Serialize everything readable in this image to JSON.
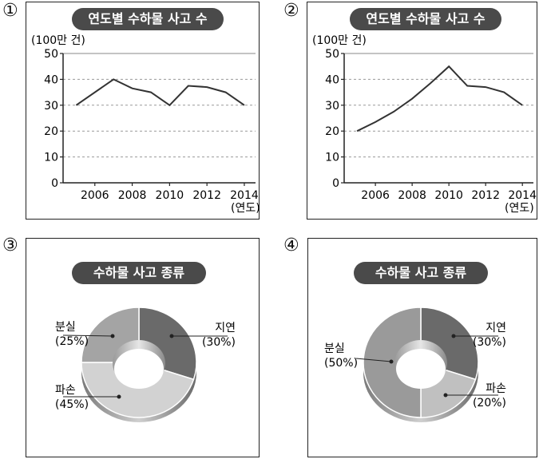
{
  "options": [
    "①",
    "②",
    "③",
    "④"
  ],
  "chart_data": [
    {
      "type": "line",
      "title": "연도별 수하물 사고 수",
      "ylabel": "(100만 건)",
      "xlabel": "(연도)",
      "ylim": [
        0,
        50
      ],
      "yticks": [
        "0",
        "10",
        "20",
        "30",
        "40",
        "50"
      ],
      "xticks": [
        "2006",
        "2008",
        "2010",
        "2012",
        "2014"
      ],
      "xlim": [
        2004.3,
        2014.6
      ],
      "x": [
        2005,
        2007,
        2008,
        2009,
        2010,
        2011,
        2012,
        2013,
        2014
      ],
      "values": [
        30,
        40,
        36.5,
        35,
        30,
        37.5,
        37,
        35,
        30
      ]
    },
    {
      "type": "line",
      "title": "연도별 수하물 사고 수",
      "ylabel": "(100만 건)",
      "xlabel": "(연도)",
      "ylim": [
        0,
        50
      ],
      "yticks": [
        "0",
        "10",
        "20",
        "30",
        "40",
        "50"
      ],
      "xticks": [
        "2006",
        "2008",
        "2010",
        "2012",
        "2014"
      ],
      "xlim": [
        2004.3,
        2014.6
      ],
      "x": [
        2005,
        2006,
        2007,
        2008,
        2009,
        2010,
        2011,
        2012,
        2013,
        2014
      ],
      "values": [
        20,
        23.5,
        27.5,
        32.5,
        38.5,
        45,
        37.5,
        37,
        35,
        30
      ]
    },
    {
      "type": "pie",
      "title": "수하물 사고 종류",
      "slices": [
        {
          "label": "지연",
          "pct": "(30%)",
          "value": 30,
          "color": "#6a6a6a"
        },
        {
          "label": "파손",
          "pct": "(45%)",
          "value": 45,
          "color": "#d2d2d2"
        },
        {
          "label": "분실",
          "pct": "(25%)",
          "value": 25,
          "color": "#a4a4a4"
        }
      ]
    },
    {
      "type": "pie",
      "title": "수하물 사고 종류",
      "slices": [
        {
          "label": "지연",
          "pct": "(30%)",
          "value": 30,
          "color": "#6a6a6a"
        },
        {
          "label": "파손",
          "pct": "(20%)",
          "value": 20,
          "color": "#c0c0c0"
        },
        {
          "label": "분실",
          "pct": "(50%)",
          "value": 50,
          "color": "#9a9a9a"
        }
      ]
    }
  ]
}
